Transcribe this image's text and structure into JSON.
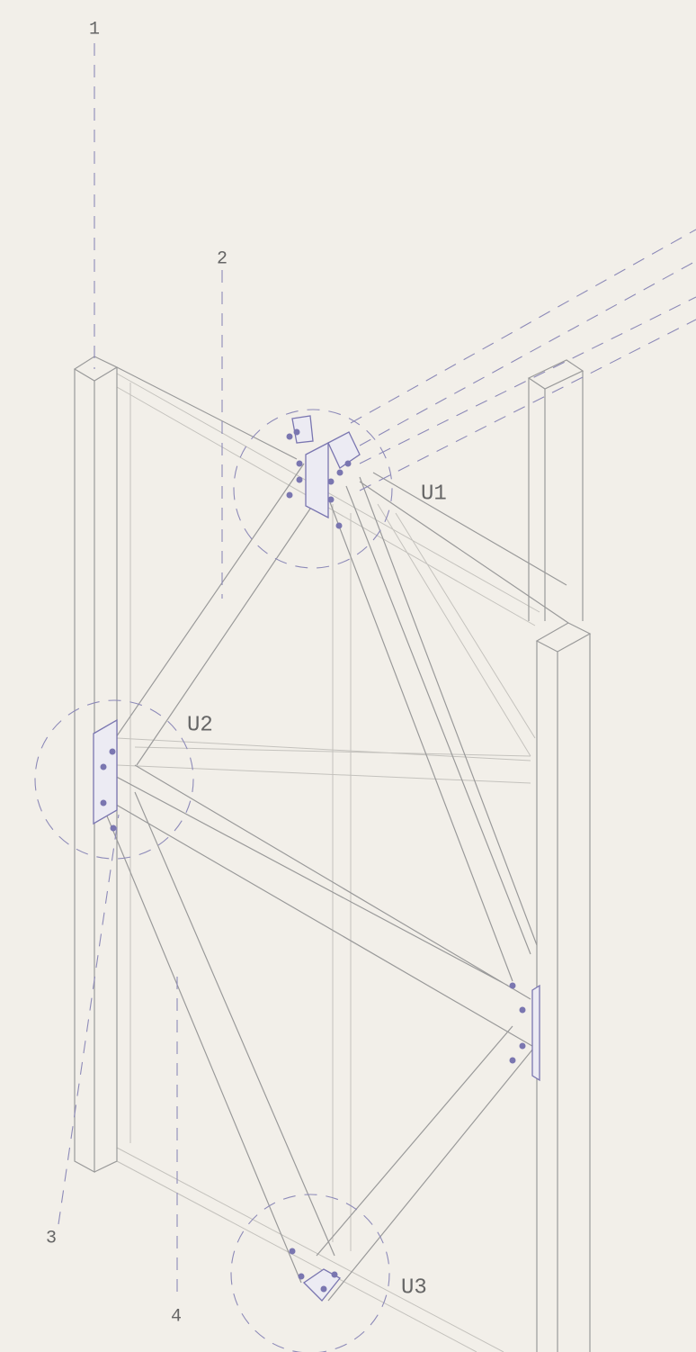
{
  "labels": {
    "axes": [
      "1",
      "2",
      "3",
      "4"
    ],
    "callouts": [
      "U1",
      "U2",
      "U3"
    ]
  }
}
